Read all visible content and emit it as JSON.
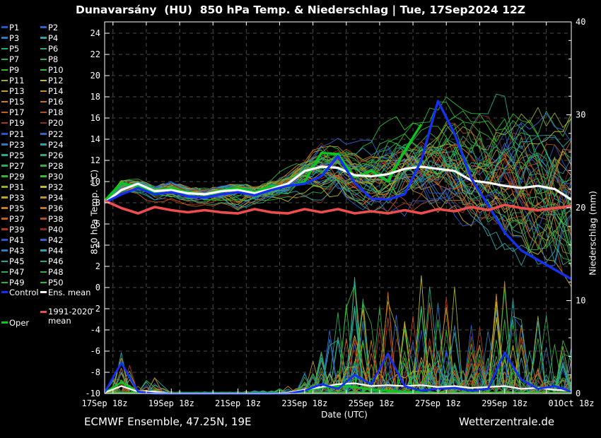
{
  "title": "Dunavarsány  (HU)  850 hPa Temp. & Niederschlag | Tue, 17Sep2024 12Z",
  "footer": {
    "left": "ECMWF Ensemble, 47.25N, 19E",
    "right": "Wetterzentrale.de"
  },
  "axes": {
    "y_left": {
      "label": "850 hPa Temp. (°C)",
      "min": -10,
      "max": 25.07,
      "tick_from": -10,
      "tick_to": 24,
      "tick_step": 2
    },
    "y_right": {
      "label": "Niederschlag (mm)",
      "min": 0,
      "max": 40,
      "tick_labels": [
        0,
        10,
        20,
        30,
        40
      ],
      "minor_step": 2
    },
    "x": {
      "label": "Date (UTC)",
      "days_span": 14,
      "grid_offset_days": 0.25,
      "label_every_days": 2,
      "tick_labels": [
        "17Sep 18z",
        "19Sep 18z",
        "21Sep 18z",
        "23Sep 18z",
        "25Sep 18z",
        "27Sep 18z",
        "29Sep 18z",
        "01Oct 18z"
      ]
    }
  },
  "legend": {
    "members": [
      "P1",
      "P2",
      "P3",
      "P4",
      "P5",
      "P6",
      "P7",
      "P8",
      "P9",
      "P10",
      "P11",
      "P12",
      "P13",
      "P14",
      "P15",
      "P16",
      "P17",
      "P18",
      "P19",
      "P20",
      "P21",
      "P22",
      "P23",
      "P24",
      "P25",
      "P26",
      "P27",
      "P28",
      "P29",
      "P30",
      "P31",
      "P32",
      "P33",
      "P34",
      "P35",
      "P36",
      "P37",
      "P38",
      "P39",
      "P40",
      "P41",
      "P42",
      "P43",
      "P44",
      "P45",
      "P46",
      "P47",
      "P48",
      "P49",
      "P50"
    ],
    "specials": [
      {
        "key": "control",
        "label": "Control"
      },
      {
        "key": "ens_mean",
        "label": "Ens. mean"
      },
      {
        "key": "climate_mean",
        "label": "1991-2020 mean"
      },
      {
        "key": "oper",
        "label": "Oper"
      }
    ]
  },
  "colors": {
    "background": "#000000",
    "text": "#ffffff",
    "grid": "#4b4b4b",
    "frame": "#ffffff",
    "control": "#1430f0",
    "ens_mean": "#ffffff",
    "climate_mean": "#ee4d4d",
    "oper": "#07c81e",
    "member_palette": [
      "#2457c5",
      "#2e62d1",
      "#2f7cb4",
      "#2ba3ab",
      "#27a893",
      "#27aa78",
      "#2bab5b",
      "#2fb043",
      "#35b331",
      "#2cc12c",
      "#9cab26",
      "#c0bd24",
      "#bfa124",
      "#c48e21",
      "#c77f20",
      "#c7701e",
      "#c05f1c",
      "#b84c1a",
      "#a93a18",
      "#8e2a16"
    ]
  },
  "chart_data": {
    "type": "line",
    "title": "Dunavarsány (HU) 850 hPa Temp. & Niederschlag",
    "x_start": "17Sep 18z",
    "x_end": "01Oct 18z",
    "x_step_hours": 12,
    "n_points": 29,
    "n_members": 50,
    "temp_c": {
      "ens_mean": [
        8.0,
        9.2,
        9.8,
        9.1,
        9.2,
        8.9,
        8.8,
        9.1,
        9.2,
        8.9,
        9.3,
        9.8,
        11.0,
        11.4,
        11.3,
        10.6,
        10.5,
        10.7,
        11.2,
        11.4,
        11.2,
        11.0,
        10.1,
        9.9,
        9.6,
        9.4,
        9.6,
        9.3,
        8.3
      ],
      "control": [
        8.0,
        8.8,
        9.4,
        8.8,
        9.0,
        8.6,
        8.5,
        8.8,
        9.0,
        8.7,
        9.2,
        9.6,
        9.8,
        10.5,
        12.4,
        9.9,
        8.4,
        8.3,
        8.8,
        12.0,
        17.6,
        14.5,
        10.3,
        7.8,
        5.2,
        3.5,
        2.6,
        1.7,
        0.8
      ],
      "climate_mean_1991_2020": [
        8.2,
        7.5,
        7.0,
        7.6,
        7.3,
        7.1,
        7.3,
        7.1,
        7.0,
        7.4,
        7.1,
        7.0,
        7.4,
        7.1,
        7.4,
        7.0,
        7.2,
        7.0,
        7.3,
        7.0,
        7.4,
        7.2,
        7.6,
        7.3,
        7.8,
        7.5,
        7.3,
        7.5,
        7.7
      ],
      "oper": [
        8.2,
        9.9,
        9.5,
        9.0,
        9.4,
        9.0,
        8.8,
        9.2,
        9.4,
        9.0,
        9.6,
        9.5,
        10.0,
        12.7,
        12.6,
        10.4,
        11.0,
        10.0,
        12.9,
        15.4
      ],
      "ens_min": [
        7.9,
        8.6,
        8.0,
        7.7,
        7.9,
        7.5,
        7.3,
        7.6,
        6.2,
        7.3,
        7.7,
        7.5,
        7.5,
        7.5,
        7.5,
        6.8,
        6.5,
        6.3,
        6.5,
        6.0,
        5.5,
        4.5,
        4.0,
        3.0,
        2.0,
        1.0,
        0.0,
        -1.0,
        -1.5
      ],
      "ens_max": [
        8.5,
        10.9,
        10.4,
        9.9,
        10.3,
        9.8,
        9.7,
        10.1,
        10.3,
        9.8,
        10.5,
        11.5,
        12.5,
        14.0,
        14.5,
        14.0,
        14.5,
        16.0,
        17.0,
        17.5,
        18.0,
        18.0,
        17.5,
        17.0,
        18.5,
        18.5,
        18.5,
        18.0,
        18.0
      ]
    },
    "precip_mm": {
      "ens_mean": [
        0.1,
        0.8,
        0.2,
        0.2,
        0,
        0,
        0,
        0,
        0,
        0,
        0,
        0.1,
        0.4,
        0.7,
        1.0,
        1.1,
        0.8,
        0.9,
        0.8,
        0.9,
        0.7,
        0.8,
        0.6,
        0.7,
        0.8,
        0.5,
        0.6,
        0.4,
        0.3
      ],
      "control": [
        0.1,
        3.3,
        0.2,
        0,
        0,
        0,
        0,
        0,
        0,
        0,
        0,
        0,
        0.3,
        1.0,
        0.5,
        2.0,
        1.0,
        4.3,
        0.8,
        0.3,
        0.5,
        0.6,
        0.3,
        0.5,
        4.4,
        1.5,
        0.5,
        0.8,
        0.2
      ],
      "oper": [
        0.1,
        1.2,
        0.2,
        0,
        0,
        0,
        0,
        0,
        0,
        0,
        0,
        0.1,
        0.3,
        0.6,
        0.8,
        0.7,
        0.4,
        0.3,
        0.2,
        0.2
      ],
      "ens_max": [
        0.3,
        5.5,
        1.0,
        1.8,
        0.3,
        0.2,
        0.2,
        0.2,
        0.2,
        0.3,
        0.3,
        0.8,
        2.5,
        5,
        9,
        13,
        9,
        11,
        8,
        13,
        10,
        12,
        9,
        10,
        14,
        8,
        10,
        7,
        5
      ]
    }
  }
}
